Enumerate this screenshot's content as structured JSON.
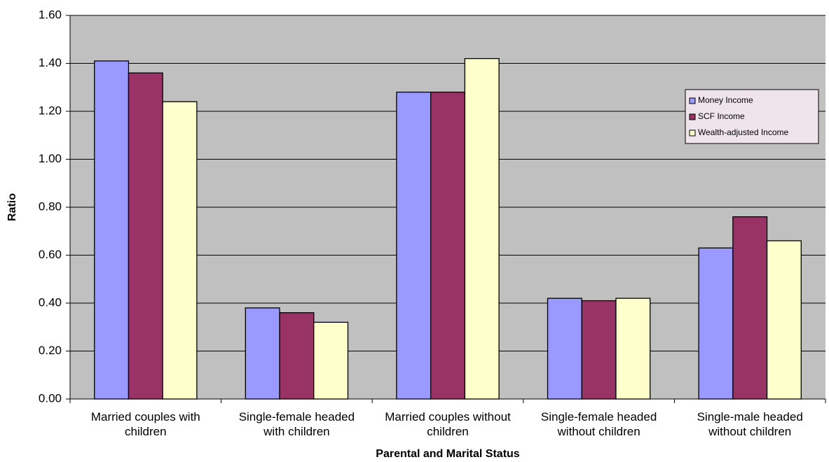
{
  "chart_data": {
    "type": "bar",
    "x_label": "Parental and Marital Status",
    "y_label": "Ratio",
    "categories": [
      "Married couples with children",
      "Single-female headed with children",
      "Married couples without children",
      "Single-female headed without children",
      "Single-male headed without children"
    ],
    "series": [
      {
        "name": "Money Income",
        "color": "#9999FF",
        "values": [
          1.41,
          0.38,
          1.28,
          0.42,
          0.63
        ]
      },
      {
        "name": "SCF Income",
        "color": "#993366",
        "values": [
          1.36,
          0.36,
          1.28,
          0.41,
          0.76
        ]
      },
      {
        "name": "Wealth-adjusted Income",
        "color": "#FFFFCC",
        "values": [
          1.24,
          0.32,
          1.42,
          0.42,
          0.66
        ]
      }
    ],
    "ylim": [
      0,
      1.6
    ],
    "yticks": [
      {
        "value": 0,
        "label": "0.00"
      },
      {
        "value": 0.2,
        "label": "0.20"
      },
      {
        "value": 0.4,
        "label": "0.40"
      },
      {
        "value": 0.6,
        "label": "0.60"
      },
      {
        "value": 0.8,
        "label": "0.80"
      },
      {
        "value": 1.0,
        "label": "1.00"
      },
      {
        "value": 1.2,
        "label": "1.20"
      },
      {
        "value": 1.4,
        "label": "1.40"
      },
      {
        "value": 1.6,
        "label": "1.60"
      }
    ],
    "grid": true,
    "legend_position": "right"
  }
}
